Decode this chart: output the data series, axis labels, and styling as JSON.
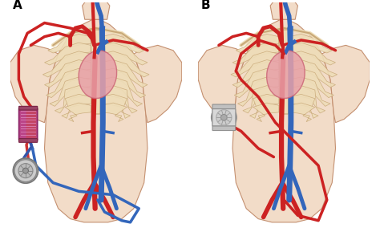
{
  "panel_A_label": "A",
  "panel_B_label": "B",
  "background_color": "#ffffff",
  "body_skin_color": "#f2dcc8",
  "body_edge_color": "#c49070",
  "body_skin_dark": "#e8c8a8",
  "arm_color": "#f2dcc8",
  "artery_color": "#cc2222",
  "artery_dark": "#aa1111",
  "vein_color": "#3366bb",
  "vein_dark": "#224499",
  "bone_color": "#eeddb8",
  "bone_edge": "#c8a878",
  "heart_color": "#e8a0a8",
  "heart_edge": "#cc6677",
  "figsize": [
    4.74,
    2.84
  ],
  "dpi": 100,
  "label_fontsize": 11,
  "label_color": "#000000"
}
